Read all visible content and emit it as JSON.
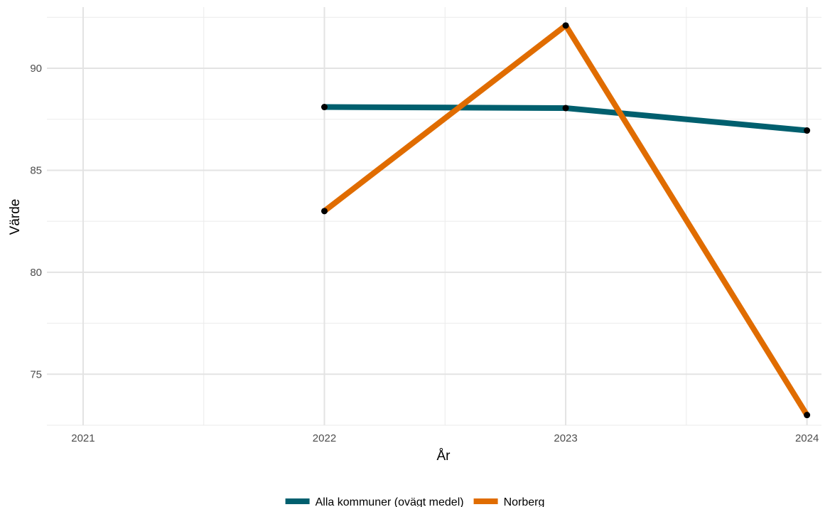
{
  "chart_data": {
    "type": "line",
    "title": "",
    "xlabel": "År",
    "ylabel": "Värde",
    "x": [
      2021,
      2022,
      2023,
      2024
    ],
    "xlim": [
      2020.85,
      2024.06
    ],
    "ylim": [
      72.5,
      93.0
    ],
    "yticks": [
      75,
      80,
      85,
      90
    ],
    "xticks": [
      2021,
      2022,
      2023,
      2024
    ],
    "grid": true,
    "legend_position": "bottom",
    "series": [
      {
        "name": "Alla kommuner (ovägt medel)",
        "color": "#005f6e",
        "points": [
          {
            "x": 2022,
            "y": 88.1
          },
          {
            "x": 2023,
            "y": 88.05
          },
          {
            "x": 2024,
            "y": 86.95
          }
        ]
      },
      {
        "name": "Norberg",
        "color": "#e06c00",
        "points": [
          {
            "x": 2022,
            "y": 83.0
          },
          {
            "x": 2023,
            "y": 92.1
          },
          {
            "x": 2024,
            "y": 73.0
          }
        ]
      }
    ]
  }
}
